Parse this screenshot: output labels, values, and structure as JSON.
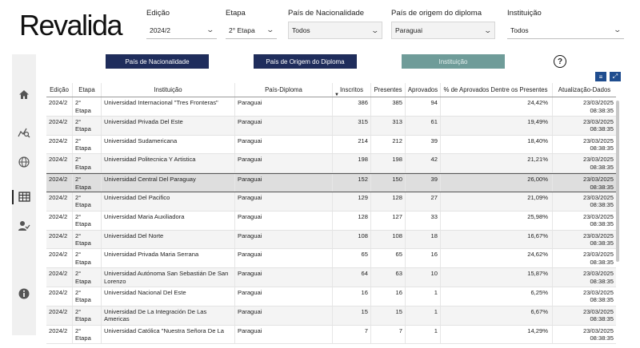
{
  "logo": "Revalida",
  "filters": [
    {
      "label": "Edição",
      "value": "2024/2"
    },
    {
      "label": "Etapa",
      "value": "2° Etapa"
    },
    {
      "label": "País de Nacionalidade",
      "value": "Todos"
    },
    {
      "label": "País de origem do diploma",
      "value": "Paraguai"
    },
    {
      "label": "Instituição",
      "value": "Todos"
    }
  ],
  "tabs": [
    "País de Nacionalidade",
    "País de Origem do Diploma",
    "Instituição"
  ],
  "help_label": "?",
  "nav_icons": [
    "home-icon",
    "chart-search-icon",
    "globe-icon",
    "table-icon",
    "user-check-icon",
    "info-icon"
  ],
  "table": {
    "columns": [
      "Edição",
      "Etapa",
      "Instituição",
      "País-Diploma",
      "Inscritos",
      "Presentes",
      "Aprovados",
      "% de Aprovados Dentre os Presentes",
      "Atualização-Dados"
    ],
    "rows": [
      {
        "edicao": "2024/2",
        "etapa": "2° Etapa",
        "instituicao": "Universidad Internacional \"Tres Fronteras\"",
        "pais": "Paraguai",
        "inscritos": "386",
        "presentes": "385",
        "aprovados": "94",
        "pct": "24,42%",
        "data": "23/03/2025",
        "hora": "08:38:35"
      },
      {
        "edicao": "2024/2",
        "etapa": "2° Etapa",
        "instituicao": "Universidad Privada Del Este",
        "pais": "Paraguai",
        "inscritos": "315",
        "presentes": "313",
        "aprovados": "61",
        "pct": "19,49%",
        "data": "23/03/2025",
        "hora": "08:38:35"
      },
      {
        "edicao": "2024/2",
        "etapa": "2° Etapa",
        "instituicao": "Universidad Sudamericana",
        "pais": "Paraguai",
        "inscritos": "214",
        "presentes": "212",
        "aprovados": "39",
        "pct": "18,40%",
        "data": "23/03/2025",
        "hora": "08:38:35"
      },
      {
        "edicao": "2024/2",
        "etapa": "2° Etapa",
        "instituicao": "Universidad Politecnica Y Artistica",
        "pais": "Paraguai",
        "inscritos": "198",
        "presentes": "198",
        "aprovados": "42",
        "pct": "21,21%",
        "data": "23/03/2025",
        "hora": "08:38:35"
      },
      {
        "edicao": "2024/2",
        "etapa": "2° Etapa",
        "instituicao": "Universidad Central Del Paraguay",
        "pais": "Paraguai",
        "inscritos": "152",
        "presentes": "150",
        "aprovados": "39",
        "pct": "26,00%",
        "data": "23/03/2025",
        "hora": "08:38:35"
      },
      {
        "edicao": "2024/2",
        "etapa": "2° Etapa",
        "instituicao": "Universidad Del Pacifico",
        "pais": "Paraguai",
        "inscritos": "129",
        "presentes": "128",
        "aprovados": "27",
        "pct": "21,09%",
        "data": "23/03/2025",
        "hora": "08:38:35"
      },
      {
        "edicao": "2024/2",
        "etapa": "2° Etapa",
        "instituicao": "Universidad Maria Auxiliadora",
        "pais": "Paraguai",
        "inscritos": "128",
        "presentes": "127",
        "aprovados": "33",
        "pct": "25,98%",
        "data": "23/03/2025",
        "hora": "08:38:35"
      },
      {
        "edicao": "2024/2",
        "etapa": "2° Etapa",
        "instituicao": "Universidad Del Norte",
        "pais": "Paraguai",
        "inscritos": "108",
        "presentes": "108",
        "aprovados": "18",
        "pct": "16,67%",
        "data": "23/03/2025",
        "hora": "08:38:35"
      },
      {
        "edicao": "2024/2",
        "etapa": "2° Etapa",
        "instituicao": "Universidad Privada Maria Serrana",
        "pais": "Paraguai",
        "inscritos": "65",
        "presentes": "65",
        "aprovados": "16",
        "pct": "24,62%",
        "data": "23/03/2025",
        "hora": "08:38:35"
      },
      {
        "edicao": "2024/2",
        "etapa": "2° Etapa",
        "instituicao": "Universidad Autónoma San Sebastián De San Lorenzo",
        "pais": "Paraguai",
        "inscritos": "64",
        "presentes": "63",
        "aprovados": "10",
        "pct": "15,87%",
        "data": "23/03/2025",
        "hora": "08:38:35"
      },
      {
        "edicao": "2024/2",
        "etapa": "2° Etapa",
        "instituicao": "Universidad Nacional Del Este",
        "pais": "Paraguai",
        "inscritos": "16",
        "presentes": "16",
        "aprovados": "1",
        "pct": "6,25%",
        "data": "23/03/2025",
        "hora": "08:38:35"
      },
      {
        "edicao": "2024/2",
        "etapa": "2° Etapa",
        "instituicao": "Universidad De La Integración De Las Americas",
        "pais": "Paraguai",
        "inscritos": "15",
        "presentes": "15",
        "aprovados": "1",
        "pct": "6,67%",
        "data": "23/03/2025",
        "hora": "08:38:35"
      },
      {
        "edicao": "2024/2",
        "etapa": "2° Etapa",
        "instituicao": "Universidad Católica \"Nuestra Señora De La",
        "pais": "Paraguai",
        "inscritos": "7",
        "presentes": "7",
        "aprovados": "1",
        "pct": "14,29%",
        "data": "23/03/2025",
        "hora": "08:38:35"
      }
    ]
  },
  "colors": {
    "tab_dark": "#1f2d5c",
    "tab_teal": "#6f9c99",
    "nav_bg": "#f0f0f0"
  }
}
